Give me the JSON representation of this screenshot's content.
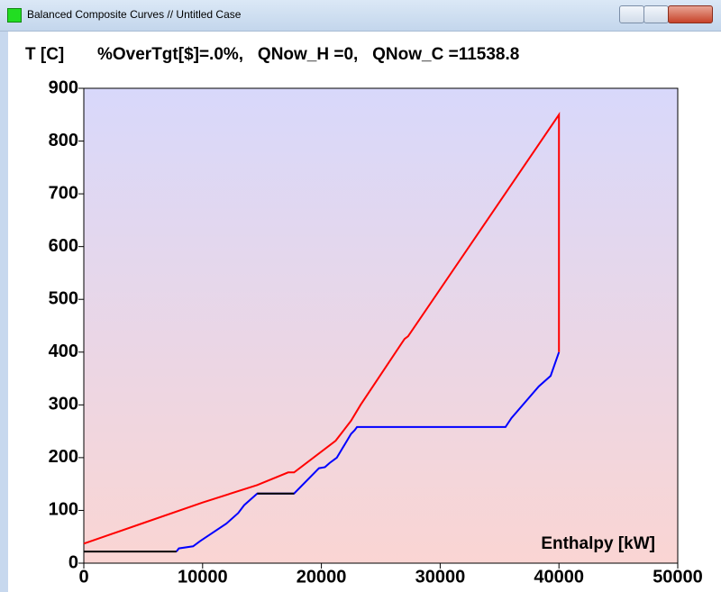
{
  "window_title": "Balanced Composite Curves // Untitled Case",
  "chart_data": {
    "type": "line",
    "y_label": "T [C]",
    "subtitle": "%OverTgt[$]=.0%,   QNow_H =0,   QNow_C =11538.8",
    "x_label": "Enthalpy [kW]",
    "xlim": [
      0,
      50000
    ],
    "xticks": [
      0,
      10000,
      20000,
      30000,
      40000,
      50000
    ],
    "ylim": [
      0,
      900
    ],
    "yticks": [
      0,
      100,
      200,
      300,
      400,
      500,
      600,
      700,
      800,
      900
    ],
    "series": [
      {
        "color": "#ff0000",
        "x": [
          0,
          5000,
          10000,
          14600,
          17200,
          17700,
          21200,
          22500,
          23300,
          27000,
          27300,
          40000,
          40000
        ],
        "values": [
          37,
          76,
          115,
          148,
          172,
          172,
          232,
          270,
          300,
          425,
          430,
          850,
          400
        ]
      },
      {
        "color": "#0000ff",
        "x": [
          7800,
          8000,
          9200,
          9800,
          12000,
          13000,
          13500,
          14600,
          17700,
          19800,
          20300,
          20700,
          21300,
          22500,
          22800,
          23000,
          35500,
          36000,
          38300,
          39300,
          40000
        ],
        "values": [
          22,
          28,
          32,
          42,
          75,
          95,
          110,
          132,
          132,
          180,
          182,
          190,
          200,
          245,
          252,
          258,
          258,
          275,
          335,
          355,
          400
        ]
      },
      {
        "color": "#000000",
        "x": [
          0,
          7800,
          10000,
          14600,
          17700
        ],
        "values": [
          22,
          22,
          null,
          132,
          132
        ]
      }
    ]
  }
}
